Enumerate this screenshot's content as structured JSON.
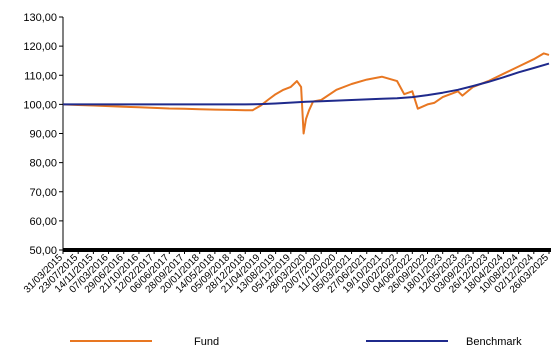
{
  "chart_data": {
    "type": "line",
    "title": "",
    "xlabel": "",
    "ylabel": "",
    "ylim": [
      50,
      130
    ],
    "yticks": [
      "50,00",
      "60,00",
      "70,00",
      "80,00",
      "90,00",
      "100,00",
      "110,00",
      "120,00",
      "130,00"
    ],
    "xticks": [
      "31/03/2015",
      "23/07/2015",
      "14/11/2015",
      "07/03/2016",
      "29/06/2016",
      "21/10/2016",
      "12/02/2017",
      "06/06/2017",
      "28/09/2017",
      "20/01/2018",
      "14/05/2018",
      "05/09/2018",
      "28/12/2018",
      "21/04/2019",
      "13/08/2019",
      "05/12/2019",
      "28/03/2020",
      "20/07/2020",
      "11/11/2020",
      "05/03/2021",
      "27/06/2021",
      "19/10/2021",
      "10/02/2022",
      "04/06/2022",
      "26/09/2022",
      "18/01/2023",
      "12/05/2023",
      "03/09/2023",
      "26/12/2023",
      "18/04/2024",
      "10/08/2024",
      "02/12/2024",
      "26/03/2025"
    ],
    "grid": false,
    "legend_position": "bottom",
    "series": [
      {
        "name": "Fund",
        "color": "#E87722",
        "x": [
          "31/03/2015",
          "23/07/2015",
          "14/11/2015",
          "07/03/2016",
          "29/06/2016",
          "21/10/2016",
          "12/02/2017",
          "06/06/2017",
          "28/09/2017",
          "20/01/2018",
          "14/05/2018",
          "05/09/2018",
          "28/12/2018",
          "21/02/2019",
          "21/04/2019",
          "15/06/2019",
          "13/08/2019",
          "10/10/2019",
          "05/12/2019",
          "20/01/2020",
          "20/02/2020",
          "10/03/2020",
          "28/03/2020",
          "20/04/2020",
          "20/05/2020",
          "20/07/2020",
          "11/11/2020",
          "05/03/2021",
          "27/06/2021",
          "19/10/2021",
          "10/02/2022",
          "04/04/2022",
          "04/06/2022",
          "15/07/2022",
          "26/09/2022",
          "15/11/2022",
          "18/01/2023",
          "12/05/2023",
          "15/06/2023",
          "03/09/2023",
          "26/12/2023",
          "18/04/2024",
          "10/08/2024",
          "02/12/2024",
          "15/02/2025",
          "26/03/2025"
        ],
        "values": [
          100.0,
          99.8,
          99.6,
          99.4,
          99.2,
          99.0,
          98.8,
          98.6,
          98.5,
          98.3,
          98.2,
          98.1,
          98.0,
          98.0,
          99.5,
          101.5,
          103.5,
          105.0,
          106.0,
          108.0,
          106.0,
          90.0,
          95.0,
          98.0,
          101.0,
          101.5,
          105.0,
          107.0,
          108.5,
          109.5,
          108.0,
          103.5,
          104.5,
          98.5,
          100.0,
          100.5,
          102.5,
          104.5,
          103.0,
          106.0,
          108.0,
          110.5,
          113.0,
          115.5,
          117.5,
          117.0
        ]
      },
      {
        "name": "Benchmark",
        "color": "#1F2A8C",
        "x": [
          "31/03/2015",
          "23/07/2015",
          "14/11/2015",
          "07/03/2016",
          "29/06/2016",
          "21/10/2016",
          "12/02/2017",
          "06/06/2017",
          "28/09/2017",
          "20/01/2018",
          "14/05/2018",
          "05/09/2018",
          "28/12/2018",
          "21/04/2019",
          "13/08/2019",
          "05/12/2019",
          "28/03/2020",
          "20/07/2020",
          "11/11/2020",
          "05/03/2021",
          "27/06/2021",
          "19/10/2021",
          "10/02/2022",
          "04/06/2022",
          "26/09/2022",
          "18/01/2023",
          "12/05/2023",
          "03/09/2023",
          "26/12/2023",
          "18/04/2024",
          "10/08/2024",
          "02/12/2024",
          "26/03/2025"
        ],
        "values": [
          100.0,
          100.0,
          100.0,
          100.0,
          100.0,
          100.0,
          100.0,
          100.0,
          100.0,
          100.0,
          100.0,
          100.0,
          100.0,
          100.1,
          100.3,
          100.6,
          100.9,
          101.1,
          101.3,
          101.5,
          101.7,
          101.9,
          102.1,
          102.5,
          103.2,
          104.0,
          105.0,
          106.3,
          107.7,
          109.3,
          111.0,
          112.5,
          114.0
        ]
      }
    ]
  }
}
